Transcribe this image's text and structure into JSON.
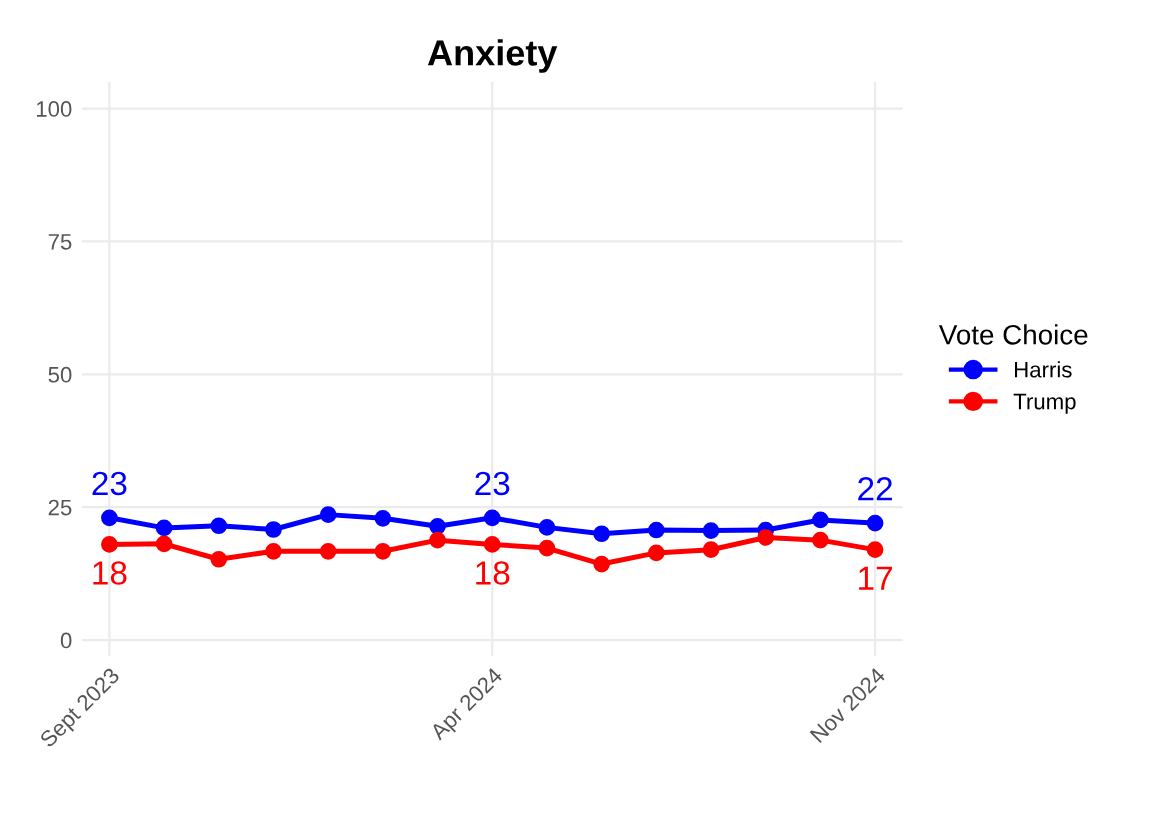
{
  "chart_data": {
    "type": "line",
    "title": "Anxiety",
    "legend_title": "Vote Choice",
    "legend": "right",
    "categories": [
      "Sept 2023",
      null,
      null,
      null,
      null,
      null,
      null,
      "Apr 2024",
      null,
      null,
      null,
      null,
      null,
      null,
      "Nov 2024"
    ],
    "series": [
      {
        "name": "Harris",
        "color": "#0000ff",
        "values": [
          23,
          21.1,
          21.5,
          20.8,
          23.6,
          22.9,
          21.4,
          23,
          21.2,
          20,
          20.7,
          20.6,
          20.7,
          22.6,
          22
        ],
        "value_labels": [
          "23",
          null,
          null,
          null,
          null,
          null,
          null,
          "23",
          null,
          null,
          null,
          null,
          null,
          null,
          "22"
        ]
      },
      {
        "name": "Trump",
        "color": "#ff0000",
        "values": [
          18,
          18.1,
          15.2,
          16.7,
          16.7,
          16.7,
          18.8,
          18,
          17.3,
          14.3,
          16.4,
          17,
          19.3,
          18.8,
          17
        ],
        "value_labels": [
          "18",
          null,
          null,
          null,
          null,
          null,
          null,
          "18",
          null,
          null,
          null,
          null,
          null,
          null,
          "17"
        ]
      }
    ],
    "ylim": [
      -3,
      105
    ],
    "yticks": [
      0,
      25,
      50,
      75,
      100
    ],
    "grid": true,
    "marker": "circle",
    "line_style": "solid"
  }
}
